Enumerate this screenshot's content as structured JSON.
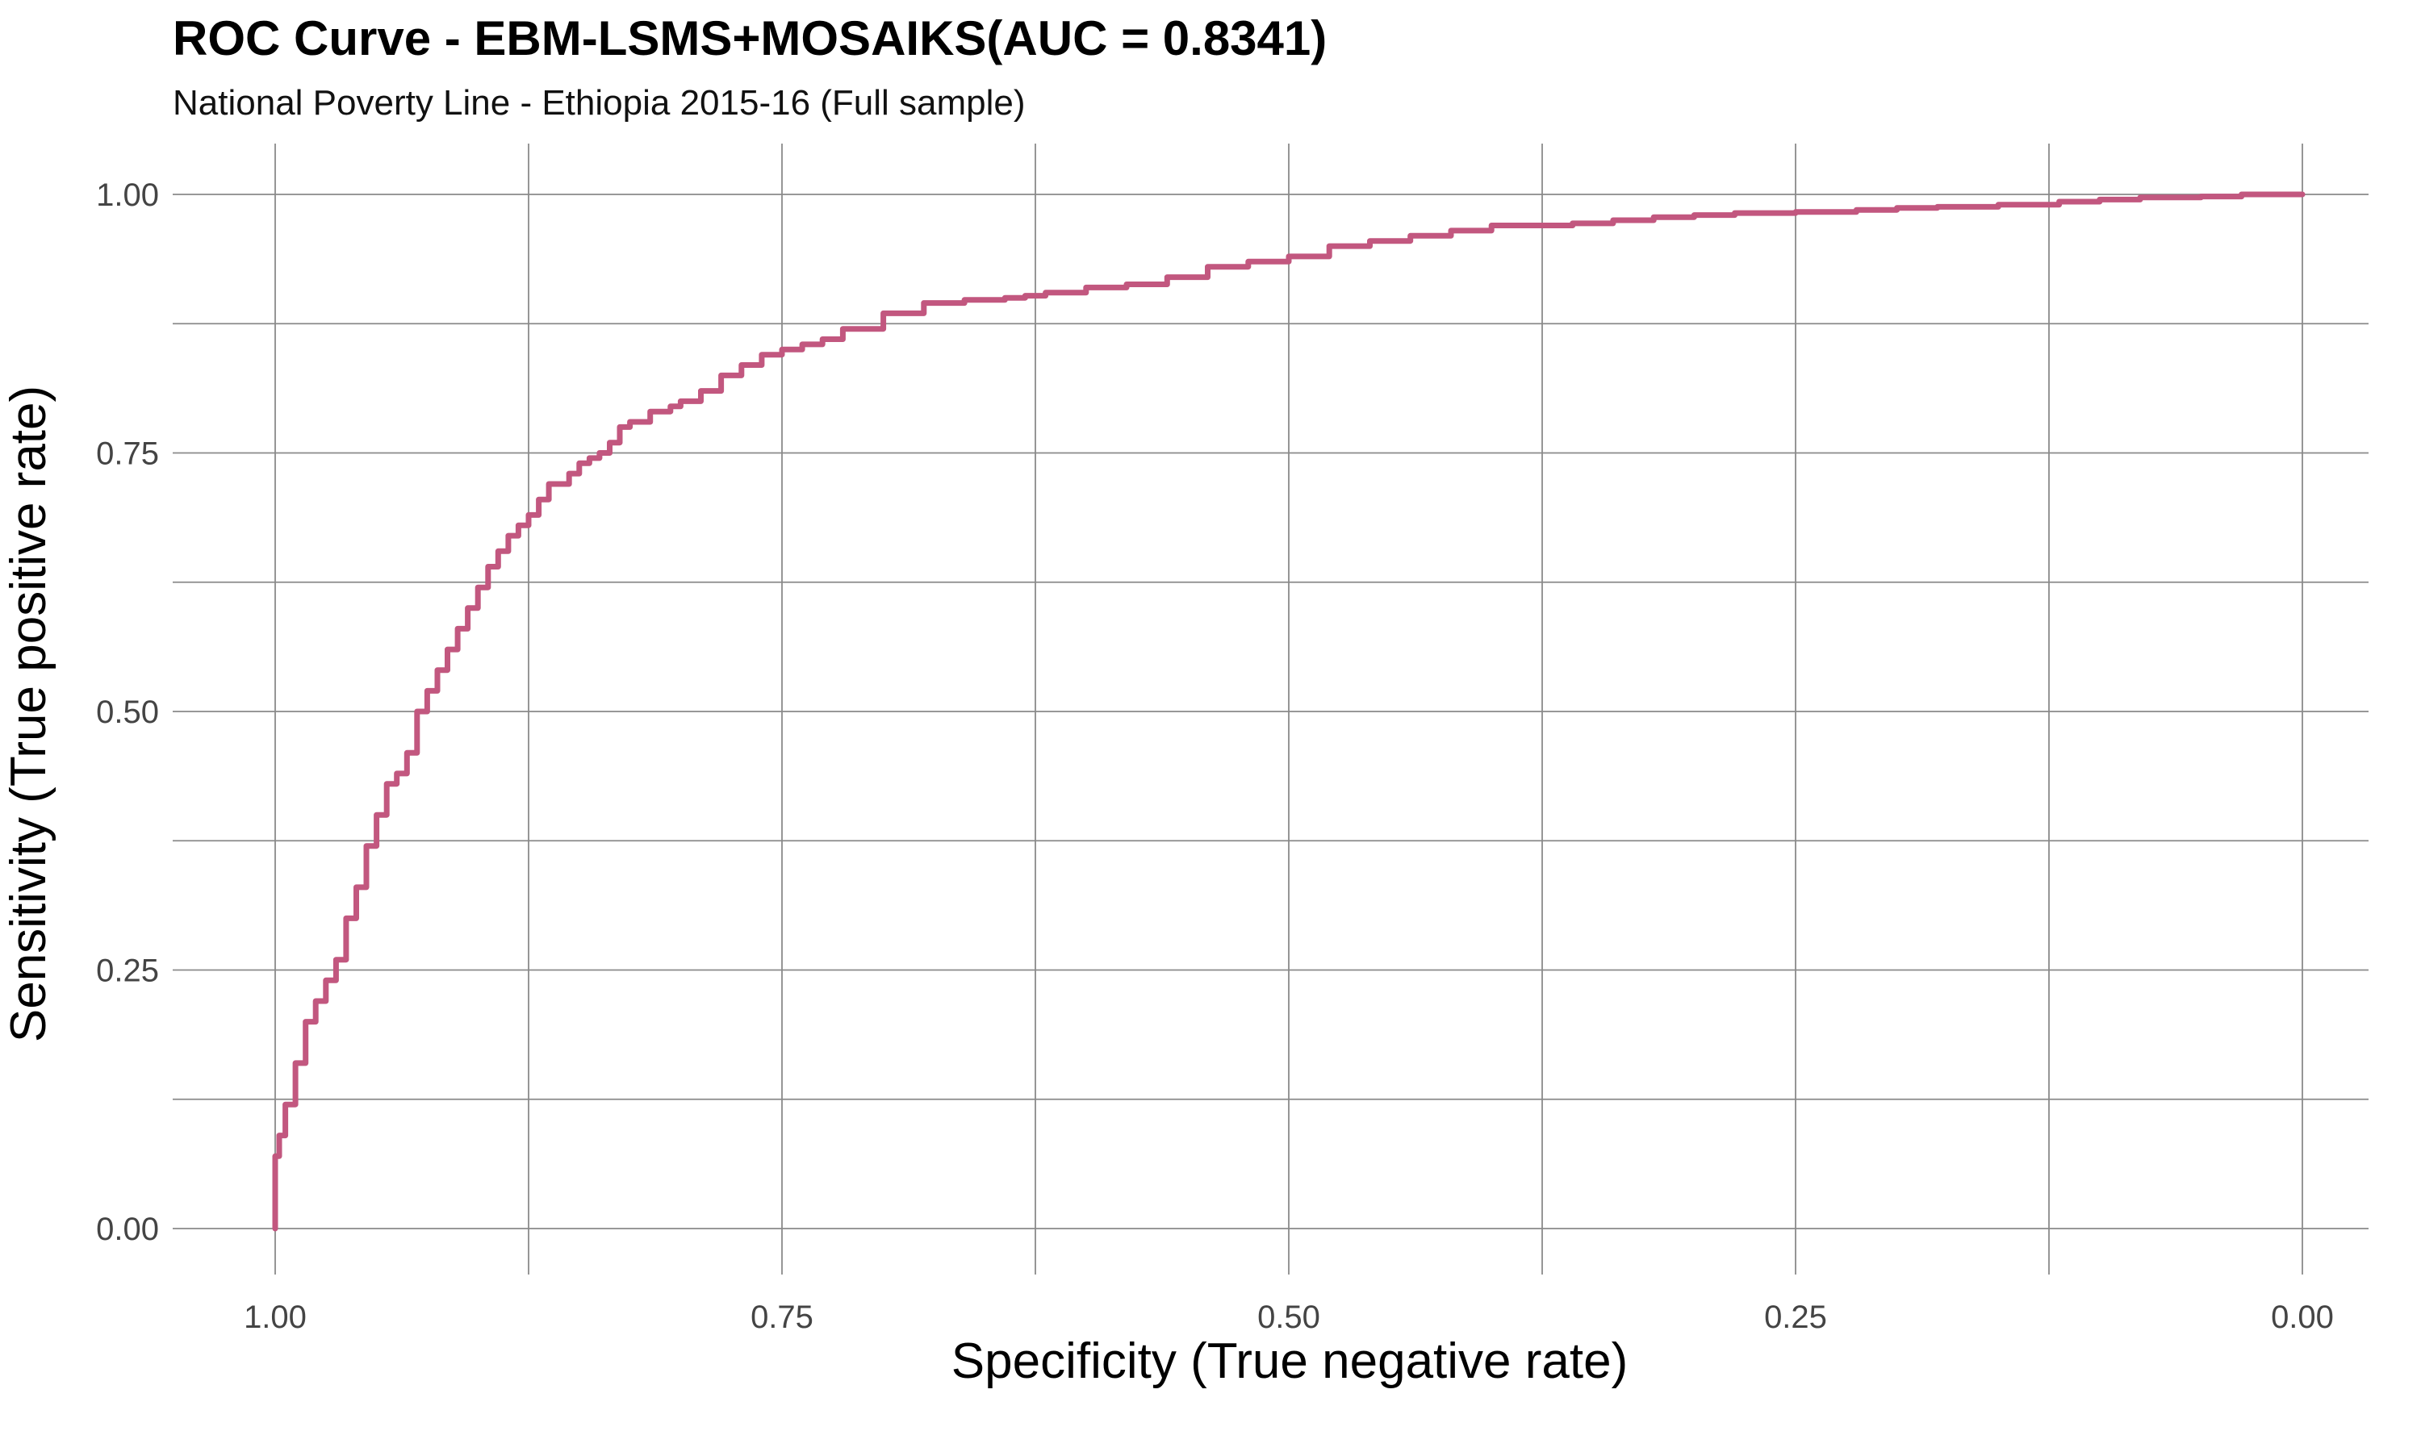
{
  "chart_data": {
    "type": "line",
    "title": "ROC Curve - EBM-LSMS+MOSAIKS(AUC = 0.8341)",
    "subtitle": "National Poverty Line - Ethiopia 2015-16 (Full sample)",
    "xlabel": "Specificity (True negative rate)",
    "ylabel": "Sensitivity (True positive rate)",
    "x_reversed": true,
    "xlim": [
      1.0,
      0.0
    ],
    "ylim": [
      0.0,
      1.0
    ],
    "x_ticks": [
      "1.00",
      "0.75",
      "0.50",
      "0.25",
      "0.00"
    ],
    "y_ticks": [
      "0.00",
      "0.25",
      "0.50",
      "0.75",
      "1.00"
    ],
    "grid": true,
    "legend": "none",
    "line_color": "#C2577F",
    "series": [
      {
        "x": [
          1.0,
          1.0,
          0.998,
          0.995,
          0.99,
          0.985,
          0.98,
          0.975,
          0.97,
          0.965,
          0.96,
          0.955,
          0.95,
          0.945,
          0.94,
          0.935,
          0.93,
          0.925,
          0.92,
          0.915,
          0.91,
          0.905,
          0.9,
          0.895,
          0.89,
          0.885,
          0.88,
          0.875,
          0.87,
          0.865,
          0.86,
          0.855,
          0.85,
          0.845,
          0.84,
          0.835,
          0.83,
          0.825,
          0.82,
          0.815,
          0.81,
          0.805,
          0.8,
          0.79,
          0.78,
          0.77,
          0.76,
          0.75,
          0.74,
          0.73,
          0.72,
          0.7,
          0.68,
          0.66,
          0.64,
          0.63,
          0.62,
          0.6,
          0.58,
          0.56,
          0.54,
          0.52,
          0.5,
          0.48,
          0.46,
          0.44,
          0.42,
          0.4,
          0.38,
          0.36,
          0.34,
          0.32,
          0.3,
          0.28,
          0.25,
          0.22,
          0.2,
          0.18,
          0.15,
          0.12,
          0.1,
          0.08,
          0.05,
          0.03,
          0.0
        ],
        "y": [
          0.0,
          0.07,
          0.09,
          0.12,
          0.16,
          0.2,
          0.22,
          0.24,
          0.26,
          0.3,
          0.33,
          0.37,
          0.4,
          0.43,
          0.44,
          0.46,
          0.5,
          0.52,
          0.54,
          0.56,
          0.58,
          0.6,
          0.62,
          0.64,
          0.655,
          0.67,
          0.68,
          0.69,
          0.705,
          0.72,
          0.72,
          0.73,
          0.74,
          0.745,
          0.75,
          0.76,
          0.775,
          0.78,
          0.78,
          0.79,
          0.79,
          0.795,
          0.8,
          0.81,
          0.825,
          0.835,
          0.845,
          0.85,
          0.855,
          0.86,
          0.87,
          0.885,
          0.895,
          0.898,
          0.9,
          0.902,
          0.905,
          0.91,
          0.913,
          0.92,
          0.93,
          0.935,
          0.94,
          0.95,
          0.955,
          0.96,
          0.965,
          0.97,
          0.97,
          0.972,
          0.975,
          0.978,
          0.98,
          0.982,
          0.983,
          0.985,
          0.987,
          0.988,
          0.99,
          0.993,
          0.995,
          0.997,
          0.998,
          1.0,
          1.0
        ]
      }
    ]
  }
}
